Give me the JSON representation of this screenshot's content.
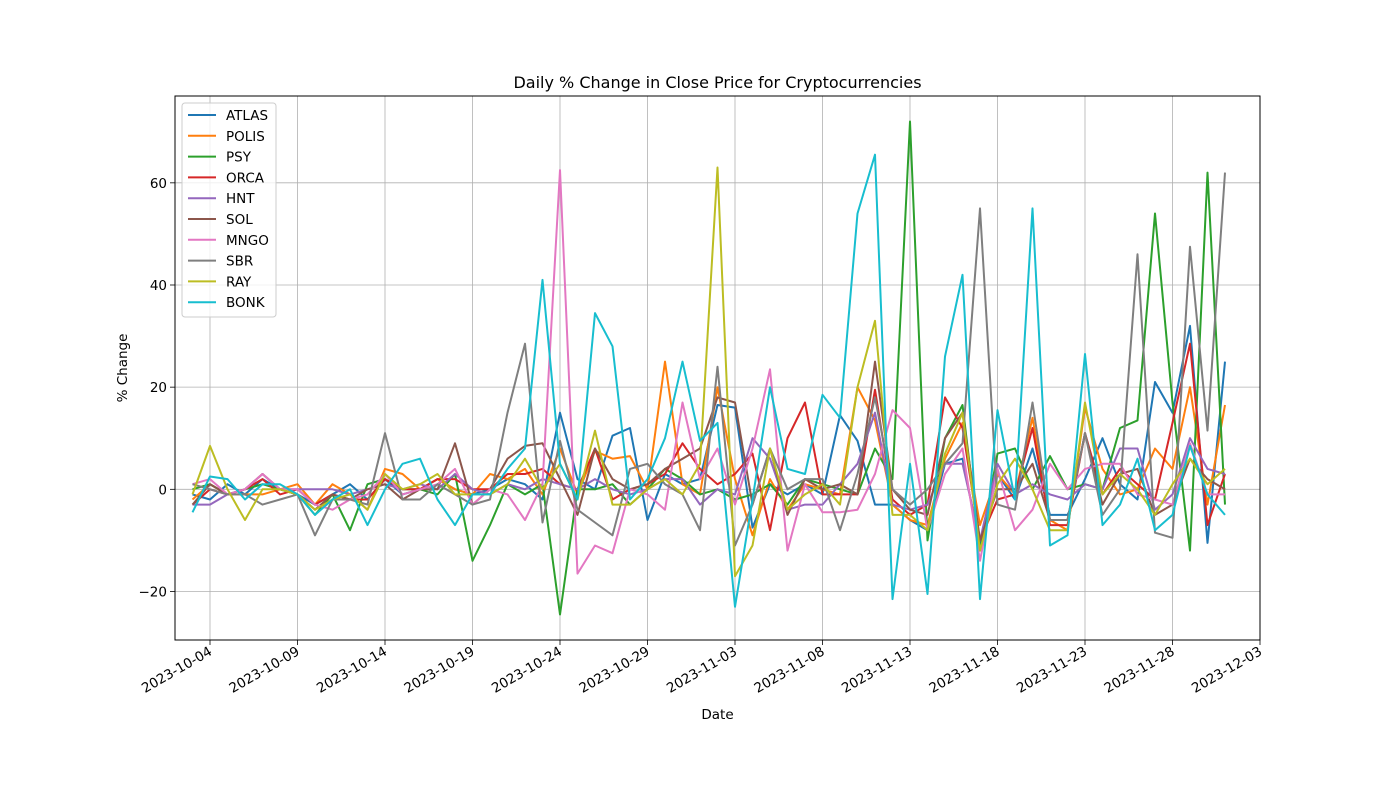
{
  "chart_data": {
    "type": "line",
    "title": "Daily % Change in Close Price for Cryptocurrencies",
    "xlabel": "Date",
    "ylabel": "% Change",
    "xlim": [
      "2023-10-02",
      "2023-12-03"
    ],
    "ylim": [
      -29.5,
      77
    ],
    "grid": true,
    "legend_position": "top-left",
    "x_ticks": [
      "2023-10-04",
      "2023-10-09",
      "2023-10-14",
      "2023-10-19",
      "2023-10-24",
      "2023-10-29",
      "2023-11-03",
      "2023-11-08",
      "2023-11-13",
      "2023-11-18",
      "2023-11-23",
      "2023-11-28",
      "2023-12-03"
    ],
    "y_ticks": [
      -20,
      0,
      20,
      40,
      60
    ],
    "x": [
      "2023-10-03",
      "2023-10-04",
      "2023-10-05",
      "2023-10-06",
      "2023-10-07",
      "2023-10-08",
      "2023-10-09",
      "2023-10-10",
      "2023-10-11",
      "2023-10-12",
      "2023-10-13",
      "2023-10-14",
      "2023-10-15",
      "2023-10-16",
      "2023-10-17",
      "2023-10-18",
      "2023-10-19",
      "2023-10-20",
      "2023-10-21",
      "2023-10-22",
      "2023-10-23",
      "2023-10-24",
      "2023-10-25",
      "2023-10-26",
      "2023-10-27",
      "2023-10-28",
      "2023-10-29",
      "2023-10-30",
      "2023-10-31",
      "2023-11-01",
      "2023-11-02",
      "2023-11-03",
      "2023-11-04",
      "2023-11-05",
      "2023-11-06",
      "2023-11-07",
      "2023-11-08",
      "2023-11-09",
      "2023-11-10",
      "2023-11-11",
      "2023-11-12",
      "2023-11-13",
      "2023-11-14",
      "2023-11-15",
      "2023-11-16",
      "2023-11-17",
      "2023-11-18",
      "2023-11-19",
      "2023-11-20",
      "2023-11-21",
      "2023-11-22",
      "2023-11-23",
      "2023-11-24",
      "2023-11-25",
      "2023-11-26",
      "2023-11-27",
      "2023-11-28",
      "2023-11-29",
      "2023-11-30",
      "2023-12-01"
    ],
    "series": [
      {
        "name": "ATLAS",
        "color": "#1f77b4",
        "values": [
          -1,
          -2,
          1,
          -1,
          2,
          0,
          -1,
          -3,
          -1,
          1,
          -2,
          2,
          -1,
          0,
          2,
          0,
          -1,
          0,
          2,
          1,
          -2,
          15,
          2,
          0,
          10.5,
          12,
          -6,
          3,
          1,
          2,
          16.5,
          16,
          -7.5,
          1,
          -1,
          1,
          -1,
          14.5,
          9.5,
          -3,
          -3,
          -6,
          -8,
          5,
          6,
          -11,
          3,
          -2,
          8,
          -5,
          -5,
          2,
          10,
          1,
          -2,
          21,
          15,
          32,
          -10.5,
          25
        ]
      },
      {
        "name": "POLIS",
        "color": "#ff7f0e",
        "values": [
          -2,
          1,
          -1,
          -1,
          -1,
          0,
          1,
          -3,
          1,
          -1,
          -4,
          4,
          3,
          0,
          2,
          0,
          -1,
          3,
          2,
          4,
          -1,
          8,
          -1,
          7.5,
          6,
          6.5,
          0,
          25,
          1,
          -1,
          20,
          2,
          -9,
          2,
          -4,
          1,
          0,
          -1,
          20,
          13.5,
          -3,
          -6,
          -7,
          6,
          13,
          -7,
          3,
          -1,
          14,
          -6,
          -8,
          16,
          4,
          -1,
          0,
          8,
          4,
          20,
          -3,
          16.5
        ]
      },
      {
        "name": "PSY",
        "color": "#2ca02c",
        "values": [
          0,
          1,
          -1,
          0,
          1,
          0,
          -1,
          -5,
          -1,
          -8,
          1,
          2,
          0,
          0,
          -1,
          3,
          -14,
          -7,
          1,
          -1,
          1,
          -24.5,
          0,
          0,
          1,
          -3,
          0,
          4,
          2,
          -1,
          0,
          -2,
          -1,
          1,
          -3,
          2,
          1,
          0,
          -1,
          8,
          2,
          72,
          -10,
          10,
          16.5,
          -12,
          7,
          8,
          0,
          6.5,
          0,
          1,
          0,
          12,
          13.5,
          54,
          17,
          -12,
          62,
          -3
        ]
      },
      {
        "name": "ORCA",
        "color": "#d62728",
        "values": [
          -3,
          0,
          -1,
          0,
          2,
          -1,
          0,
          -3,
          -1,
          -2,
          -2,
          2,
          0,
          0,
          2,
          2,
          0,
          0,
          3,
          3,
          4,
          1,
          0,
          8,
          -2,
          0,
          1,
          3,
          9,
          4,
          1,
          3,
          7,
          -8,
          10,
          17,
          -1,
          -1,
          -1,
          19.5,
          -2,
          -5,
          -3,
          18,
          12,
          -10,
          -2,
          -1,
          12,
          -7,
          -7,
          11,
          -1,
          4,
          1,
          -2,
          13,
          28.5,
          -7,
          3
        ]
      },
      {
        "name": "HNT",
        "color": "#9467bd",
        "values": [
          -3,
          -3,
          -1,
          0,
          3,
          0,
          0,
          0,
          0,
          -1,
          0,
          1,
          0,
          1,
          0,
          3,
          0,
          -1,
          1,
          0,
          2,
          1,
          0,
          2,
          0,
          -1,
          0,
          2,
          2,
          -3,
          0,
          -1,
          10,
          6,
          -4,
          -3,
          -3,
          1,
          5,
          15,
          -3,
          -4,
          -3,
          5,
          5,
          -10,
          5,
          -1,
          1,
          -1,
          -2,
          1,
          0,
          8,
          8,
          -4,
          -1,
          10,
          4,
          3
        ]
      },
      {
        "name": "SOL",
        "color": "#8c564b",
        "values": [
          -3,
          1,
          -1,
          0,
          3,
          0,
          -1,
          -4,
          -1,
          -2,
          0,
          1,
          -2,
          0,
          0,
          9,
          -3,
          0,
          6,
          8.5,
          9,
          2,
          -5,
          8,
          2,
          0,
          1,
          4,
          6,
          8,
          18,
          17,
          -3,
          8,
          -5,
          2,
          0,
          1,
          -1,
          25,
          0,
          -4,
          -5,
          10,
          15,
          -10,
          0,
          0,
          5,
          -6,
          -6,
          11,
          -3,
          3,
          4,
          -5,
          -3,
          6,
          2,
          0
        ]
      },
      {
        "name": "MNGO",
        "color": "#e377c2",
        "values": [
          1,
          2,
          -1,
          0,
          3,
          0,
          0,
          -3,
          -4,
          -2,
          -1,
          3,
          -1,
          0,
          1,
          4,
          -3,
          0,
          -1,
          -6,
          1,
          62.5,
          -16.5,
          -11,
          -12.5,
          0,
          -1,
          -4,
          17,
          2,
          8,
          -3,
          8,
          23.5,
          -12,
          1,
          -4.5,
          -4.5,
          -4,
          3,
          15.5,
          12,
          -8,
          3,
          8,
          -14,
          4,
          -8,
          -4,
          5,
          0,
          4,
          5,
          5,
          -1,
          -2,
          -3,
          9,
          -1,
          -1
        ]
      },
      {
        "name": "SBR",
        "color": "#7f7f7f",
        "values": [
          1,
          0,
          -1,
          -1,
          -3,
          -2,
          -1,
          -9,
          -2,
          -2,
          -3,
          11,
          -2,
          -2,
          1,
          -1,
          -3,
          -2,
          15,
          28.5,
          -6.5,
          9.5,
          -4,
          -6.5,
          -9,
          4,
          5,
          1,
          -1,
          -8,
          24,
          -11,
          -3,
          8,
          0,
          2,
          2,
          -8,
          3,
          18,
          0,
          -3,
          0,
          5,
          9,
          55,
          -3,
          -4,
          17,
          -6,
          -6,
          11,
          -5,
          0,
          46,
          -8.5,
          -9.5,
          47.5,
          11.5,
          62
        ]
      },
      {
        "name": "RAY",
        "color": "#bcbd22",
        "values": [
          -1,
          8.5,
          0,
          -6,
          0,
          0,
          -1,
          -4,
          -2,
          -1,
          -4,
          3,
          0,
          1,
          3,
          -1,
          -1,
          -1,
          1,
          6,
          0,
          5,
          -2,
          11.5,
          -3,
          -3,
          0,
          2,
          -1,
          5,
          63,
          -17,
          -11,
          8,
          -4,
          -1,
          1,
          -3,
          20,
          33,
          -5,
          -5,
          -8,
          7,
          15,
          -12,
          1,
          6,
          0,
          -8,
          -8,
          17,
          -1,
          3,
          0,
          -5,
          1,
          6,
          1,
          4
        ]
      },
      {
        "name": "BONK",
        "color": "#17becf",
        "values": [
          -4.5,
          2.5,
          2,
          -2,
          1,
          1,
          -1,
          -5,
          -2,
          0,
          -7,
          0,
          5,
          6,
          -2,
          -7,
          -1,
          -1,
          4,
          8,
          41,
          5,
          -2,
          34.5,
          28,
          -2,
          2,
          10,
          25,
          9.5,
          13,
          -23,
          -2,
          20,
          4,
          3,
          18.5,
          14,
          54,
          65.5,
          -21.5,
          5,
          -20.5,
          26,
          42,
          -21.5,
          15.5,
          -2,
          55,
          -11,
          -9,
          26.5,
          -7,
          -3,
          6,
          -8,
          -5,
          8.5,
          -1,
          -5
        ]
      }
    ]
  }
}
